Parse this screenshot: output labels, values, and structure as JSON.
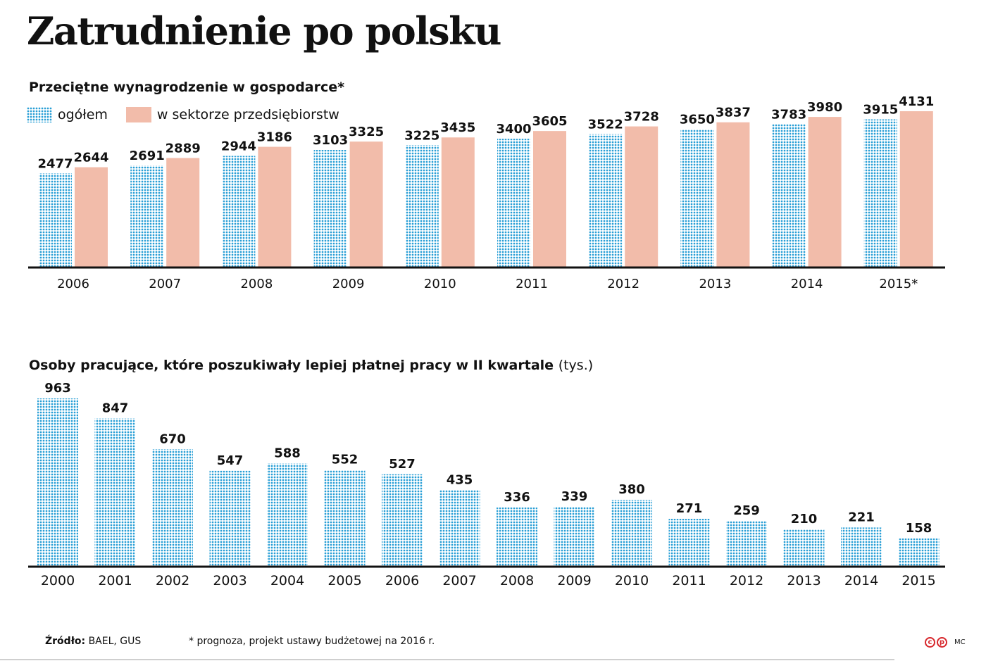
{
  "title": "Zatrudnienie po polsku",
  "colors": {
    "dots": "#2a9fd6",
    "pink": "#f2bcaa",
    "axis": "#111111"
  },
  "chart_data": [
    {
      "type": "bar",
      "title": "Przeciętne wynagrodzenie w gospodarce*",
      "categories": [
        "2006",
        "2007",
        "2008",
        "2009",
        "2010",
        "2011",
        "2012",
        "2013",
        "2014",
        "2015*"
      ],
      "series": [
        {
          "name": "ogółem",
          "values": [
            2477,
            2691,
            2944,
            3103,
            3225,
            3400,
            3522,
            3650,
            3783,
            3915
          ]
        },
        {
          "name": "w sektorze przedsiębiorstw",
          "values": [
            2644,
            2889,
            3186,
            3325,
            3435,
            3605,
            3728,
            3837,
            3980,
            4131
          ]
        }
      ],
      "ylim": [
        0,
        4131
      ],
      "legend": "top-left",
      "grid": false
    },
    {
      "type": "bar",
      "title": "Osoby pracujące, które poszukiwały lepiej płatnej pracy w II kwartale",
      "unit": "(tys.)",
      "categories": [
        "2000",
        "2001",
        "2002",
        "2003",
        "2004",
        "2005",
        "2006",
        "2007",
        "2008",
        "2009",
        "2010",
        "2011",
        "2012",
        "2013",
        "2014",
        "2015"
      ],
      "values": [
        963,
        847,
        670,
        547,
        588,
        552,
        527,
        435,
        336,
        339,
        380,
        271,
        259,
        210,
        221,
        158
      ],
      "ylim": [
        0,
        963
      ],
      "grid": false
    }
  ],
  "footer": {
    "source_label": "Źródło:",
    "source": "BAEL, GUS",
    "note": "* prognoza, projekt ustawy budżetowej na 2016 r."
  },
  "logo": {
    "mark1": "c",
    "mark2": "p",
    "credit": "MC"
  }
}
